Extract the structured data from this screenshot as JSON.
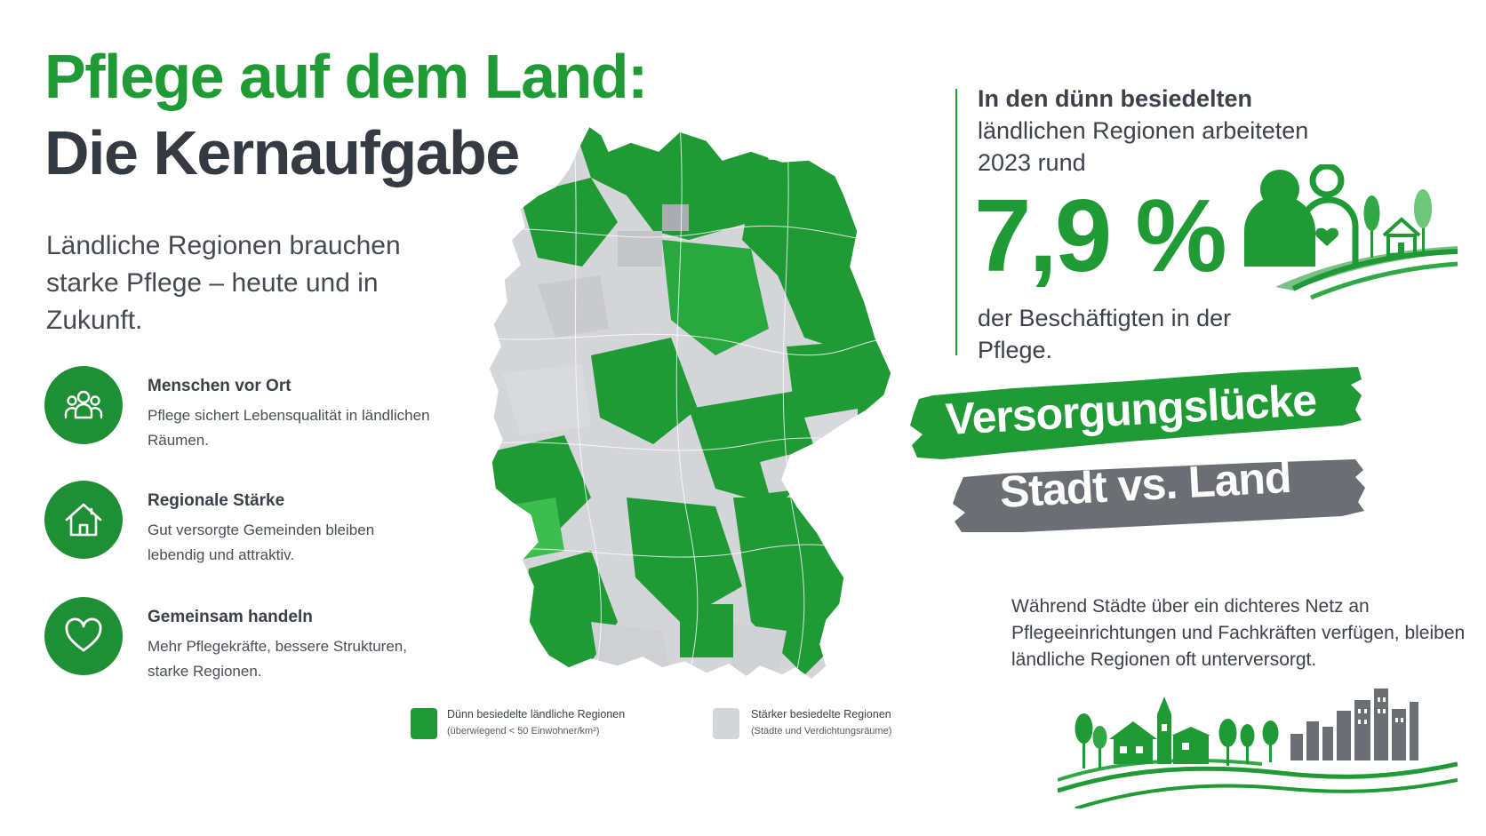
{
  "header": {
    "title_line1": "Pflege auf dem Land:",
    "title_line2": "Die Kernaufgabe",
    "subtitle": "Ländliche Regionen brauchen starke Pflege – heute und in Zukunft."
  },
  "features": [
    {
      "icon": "people-icon",
      "title": "Menschen vor Ort",
      "text": "Pflege sichert Lebensqualität in ländlichen Räumen."
    },
    {
      "icon": "house-icon",
      "title": "Regionale Stärke",
      "text": "Gut versorgte Gemeinden bleiben lebendig und attraktiv."
    },
    {
      "icon": "heart-icon",
      "title": "Gemeinsam handeln",
      "text": "Mehr Pflegekräfte, bessere Strukturen, starke Regionen."
    }
  ],
  "legend": {
    "rural_label": "Dünn besiedelte ländliche Regionen",
    "rural_sub": "(überwiegend < 50 Einwohner/km²)",
    "urban_label": "Stärker besiedelte Regionen",
    "urban_sub": "(Städte und Verdichtungsräume)"
  },
  "stat": {
    "intro_bold": "In den dünn besiedelten",
    "intro_rest": "ländlichen Regionen arbeiteten 2023 rund",
    "value": "7,9 %",
    "outro": "der Beschäftigten in der Pflege."
  },
  "banner": {
    "line1": "Versorgungslücke",
    "line2": "Stadt vs. Land"
  },
  "gap_text": "Während Städte über ein dichteres Netz an Pflegeeinrichtungen und Fachkräften verfügen, bleiben ländliche Regionen oft unterversorgt.",
  "colors": {
    "green": "#1f9a35",
    "dark_green": "#1f8f36",
    "grey": "#d4d5d8",
    "dark_text": "#353941",
    "banner_grey": "#6b6e73"
  }
}
